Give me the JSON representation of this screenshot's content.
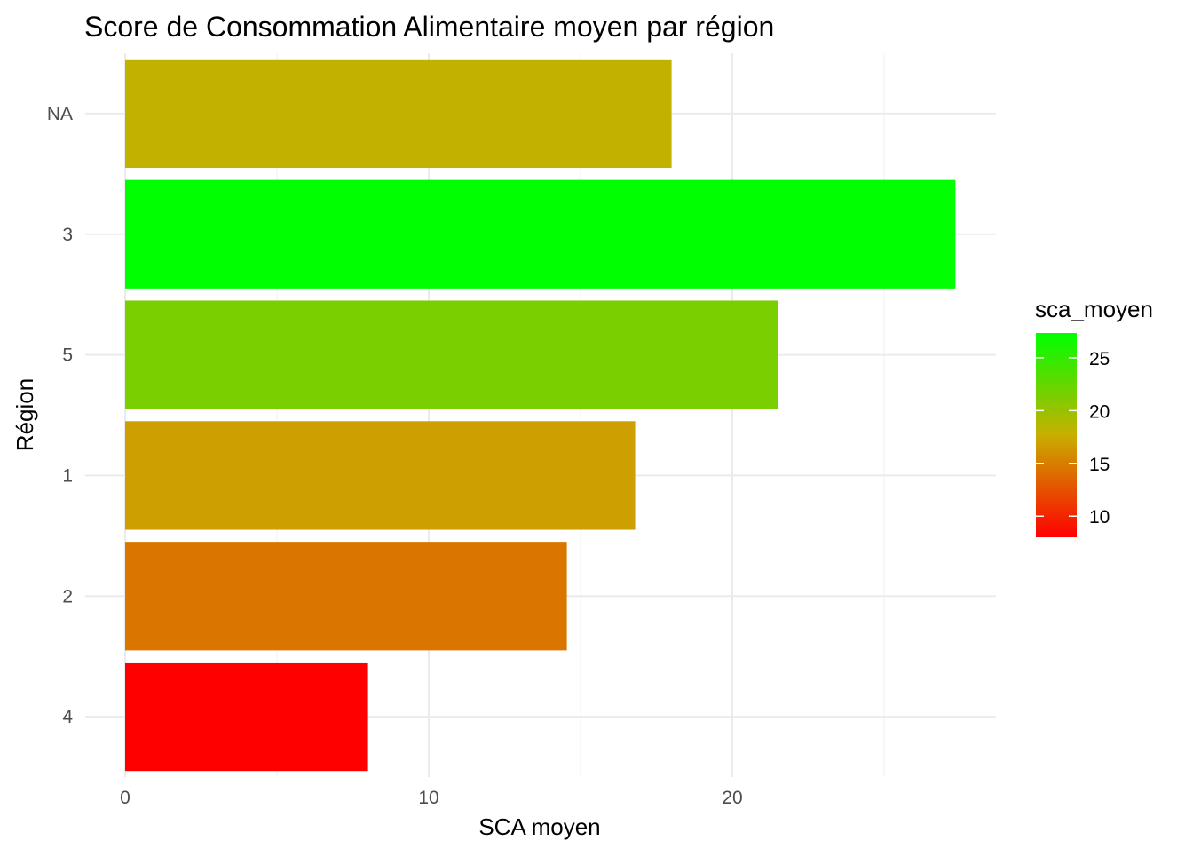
{
  "chart_data": {
    "type": "bar",
    "orientation": "horizontal",
    "title": "Score de Consommation Alimentaire moyen par région",
    "xlabel": "SCA moyen",
    "ylabel": "Région",
    "categories": [
      "NA",
      "3",
      "5",
      "1",
      "2",
      "4"
    ],
    "values": [
      18.0,
      27.35,
      21.5,
      16.8,
      14.55,
      8.0
    ],
    "xlim": [
      0,
      28.7
    ],
    "xticks": [
      0,
      10,
      20
    ],
    "grid": true,
    "legend": {
      "title": "sca_moyen",
      "position": "right",
      "type": "colorbar",
      "range": [
        8.0,
        27.35
      ],
      "ticks": [
        10,
        15,
        20,
        25
      ],
      "colors": {
        "low": "#FF0000",
        "mid": "#C8AF00",
        "high": "#00FF00"
      }
    }
  }
}
